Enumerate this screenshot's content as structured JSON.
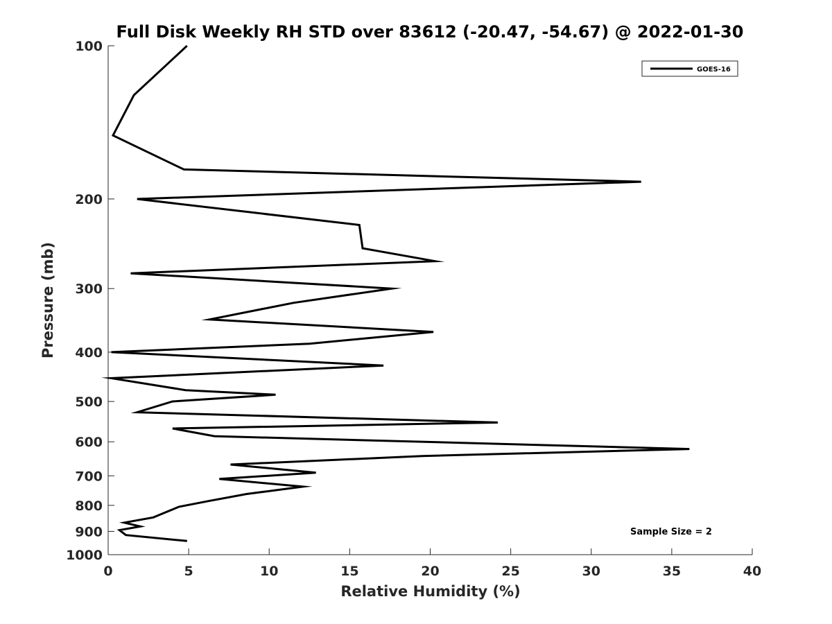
{
  "chart_data": {
    "type": "line",
    "title": "Full Disk Weekly RH STD over 83612 (-20.47, -54.67) @ 2022-01-30",
    "xlabel": "Relative Humidity (%)",
    "ylabel": "Pressure (mb)",
    "xlim": [
      0,
      40
    ],
    "ylim": [
      100,
      1000
    ],
    "yscale": "log",
    "y_reversed": true,
    "x_ticks": [
      0,
      5,
      10,
      15,
      20,
      25,
      30,
      35,
      40
    ],
    "x_tick_labels": [
      "0",
      "5",
      "10",
      "15",
      "20",
      "25",
      "30",
      "35",
      "40"
    ],
    "y_ticks": [
      100,
      200,
      300,
      400,
      500,
      600,
      700,
      800,
      900,
      1000
    ],
    "y_tick_labels": [
      "100",
      "200",
      "300",
      "400",
      "500",
      "600",
      "700",
      "800",
      "900",
      "1000"
    ],
    "legend_position": "top-right",
    "series": [
      {
        "name": "GOES-16",
        "color": "#000000",
        "rh": [
          4.9,
          1.6,
          0.3,
          4.7,
          33.1,
          1.8,
          15.6,
          15.8,
          20.3,
          1.4,
          17.6,
          11.5,
          6.3,
          20.2,
          12.5,
          0.2,
          17.1,
          0.2,
          4.8,
          10.4,
          4.0,
          1.8,
          24.2,
          4.0,
          6.6,
          36.1,
          19.5,
          7.6,
          12.9,
          6.9,
          12.1,
          8.6,
          6.2,
          4.4,
          2.8,
          1.0,
          2.0,
          0.7,
          1.1,
          4.9
        ],
        "pressure": [
          100,
          125,
          150,
          175,
          185,
          200,
          225,
          250,
          265,
          280,
          300,
          320,
          345,
          365,
          385,
          400,
          425,
          450,
          475,
          485,
          500,
          525,
          550,
          565,
          585,
          620,
          640,
          665,
          690,
          710,
          735,
          760,
          785,
          805,
          845,
          865,
          880,
          895,
          915,
          940
        ]
      }
    ],
    "annotations": [
      "Sample Size = 2"
    ]
  }
}
